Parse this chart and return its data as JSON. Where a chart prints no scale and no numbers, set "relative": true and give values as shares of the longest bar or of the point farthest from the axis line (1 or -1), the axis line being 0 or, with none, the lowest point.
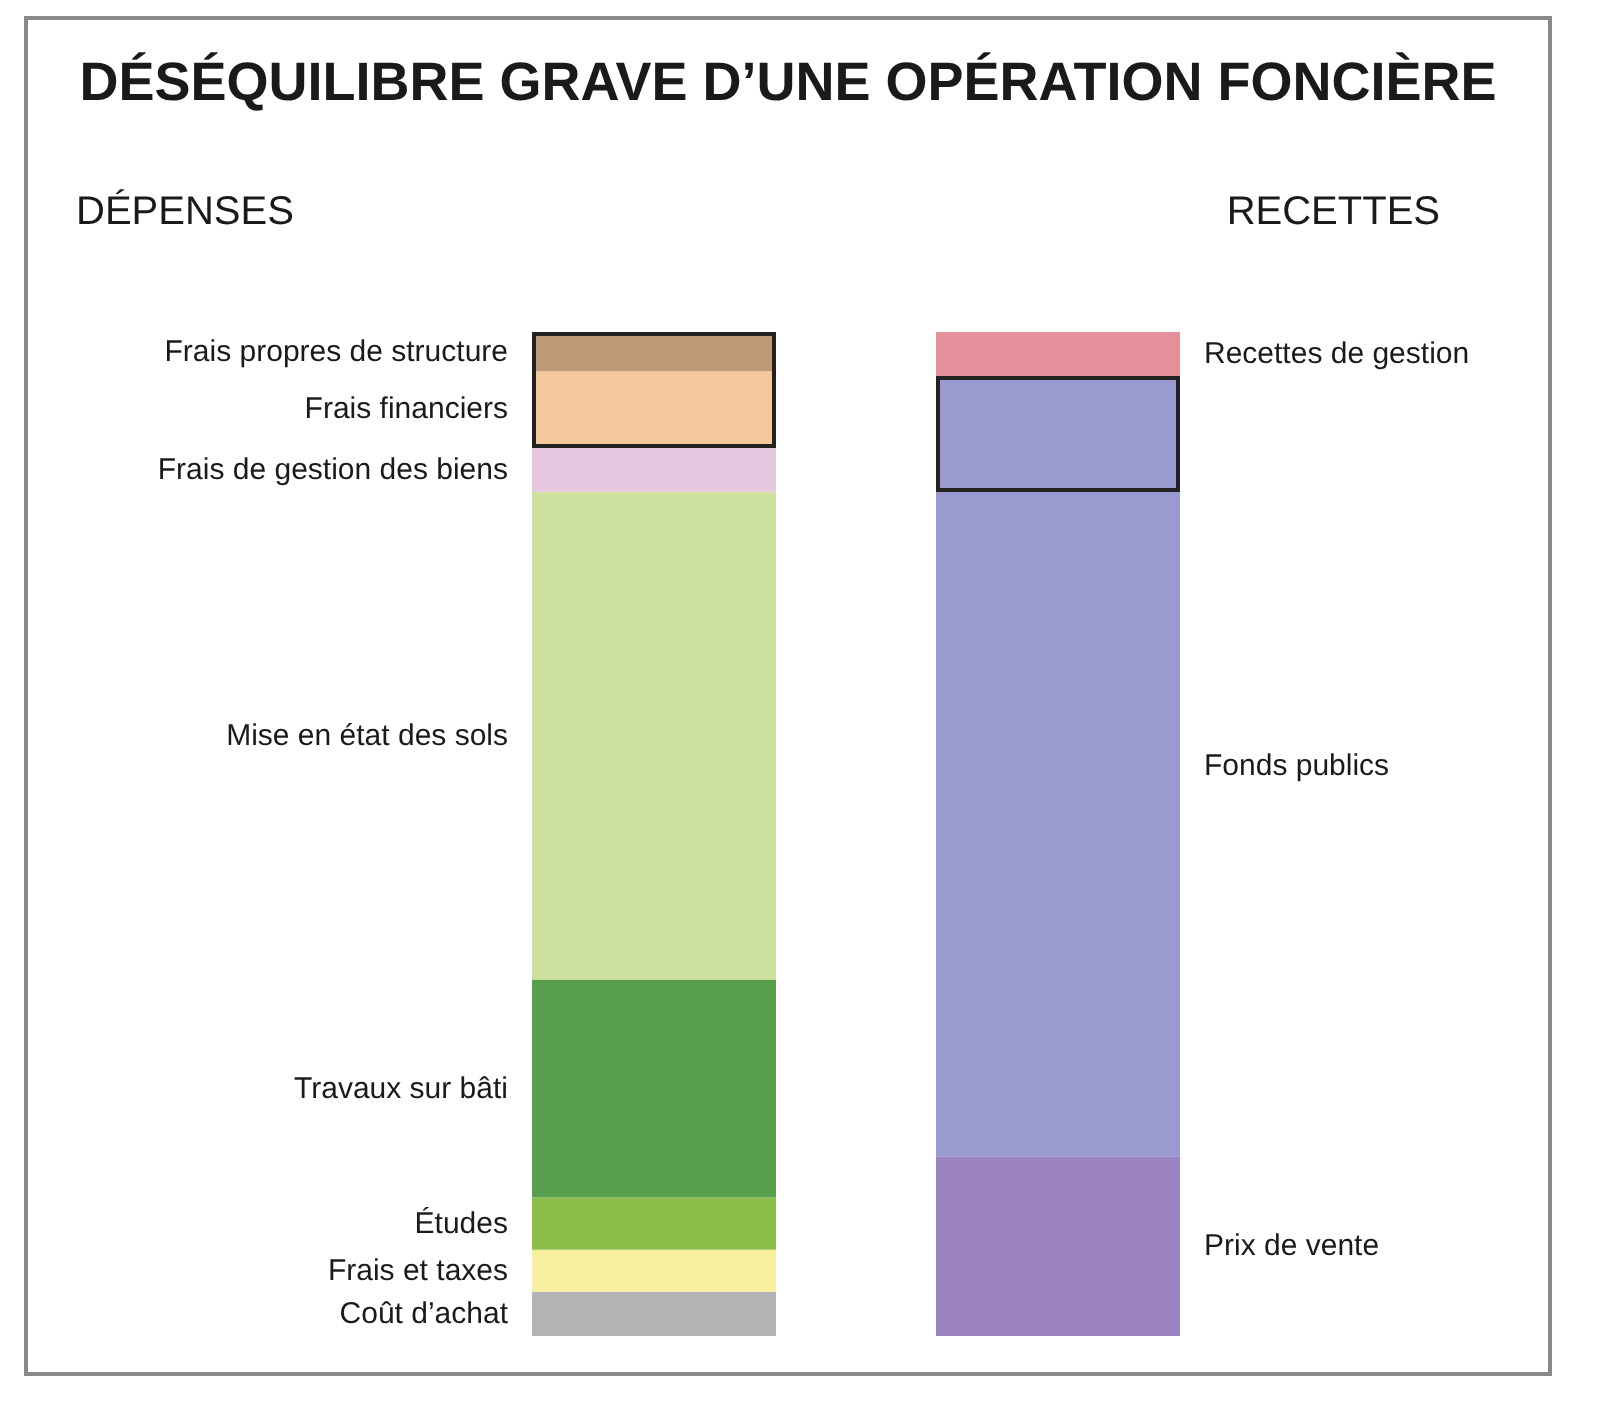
{
  "chart_data": {
    "type": "bar",
    "title": "DÉSÉQUILIBRE GRAVE D’UNE OPÉRATION FONCIÈRE",
    "categories": [
      "DÉPENSES",
      "RECETTES"
    ],
    "stacked": true,
    "relative": true,
    "legend": false,
    "series": [
      {
        "name": "Coût d’achat",
        "color": "#b3b3b3",
        "values": [
          0.044,
          null
        ]
      },
      {
        "name": "Frais et taxes",
        "color": "#f5ef9e",
        "values": [
          0.042,
          null
        ]
      },
      {
        "name": "Études",
        "color": "#8cbf4a",
        "values": [
          0.052,
          null
        ]
      },
      {
        "name": "Travaux sur bâti",
        "color": "#5a9e50",
        "values": [
          0.217,
          null
        ]
      },
      {
        "name": "Mise en état des sols",
        "color": "#cde09e",
        "values": [
          0.486,
          null
        ]
      },
      {
        "name": "Frais de gestion des biens",
        "color": "#e6c8e0",
        "values": [
          0.044,
          null
        ]
      },
      {
        "name": "Frais financiers",
        "color": "#f5c79d",
        "values": [
          0.076,
          null
        ]
      },
      {
        "name": "Frais propres de structure",
        "color": "#bf9a78",
        "values": [
          0.039,
          null
        ]
      },
      {
        "name": "Prix de vente",
        "color": "#9b82c0",
        "values": [
          null,
          0.179
        ]
      },
      {
        "name": "Fonds publics",
        "color": "#9a9ad0",
        "values": [
          null,
          0.777
        ]
      },
      {
        "name": "Recettes de gestion",
        "color": "#e3909a",
        "values": [
          null,
          0.044
        ]
      }
    ]
  }
}
